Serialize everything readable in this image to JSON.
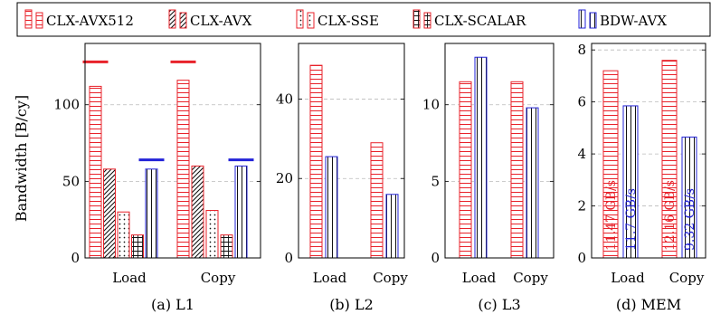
{
  "colors": {
    "red": "#e8222a",
    "blue": "#2323d8",
    "black": "#111111",
    "grid": "#bbbbbb"
  },
  "legend": {
    "entries": [
      {
        "label": "CLX-AVX512",
        "color": "#e8222a",
        "pattern": "hlines"
      },
      {
        "label": "CLX-AVX",
        "color": "#e8222a",
        "pattern": "diag"
      },
      {
        "label": "CLX-SSE",
        "color": "#e8222a",
        "pattern": "dots"
      },
      {
        "label": "CLX-SCALAR",
        "color": "#e8222a",
        "pattern": "grid"
      },
      {
        "label": "BDW-AVX",
        "color": "#2323d8",
        "pattern": "vlines"
      }
    ]
  },
  "ylabel": "Bandwidth [B/cy]",
  "chart_data": [
    {
      "type": "bar",
      "caption": "(a) L1",
      "categories": [
        "Load",
        "Copy"
      ],
      "ylim": [
        0,
        140
      ],
      "yticks": [
        0,
        50,
        100
      ],
      "grid": true,
      "series": [
        {
          "name": "CLX-AVX512",
          "values": [
            112,
            116
          ]
        },
        {
          "name": "CLX-AVX",
          "values": [
            58,
            60
          ]
        },
        {
          "name": "CLX-SSE",
          "values": [
            30,
            31
          ]
        },
        {
          "name": "CLX-SCALAR",
          "values": [
            15,
            15
          ]
        },
        {
          "name": "BDW-AVX",
          "values": [
            58,
            60
          ]
        }
      ],
      "peak_markers": [
        {
          "category": "Load",
          "series": "CLX-AVX512",
          "value": 128,
          "color": "#e8222a"
        },
        {
          "category": "Copy",
          "series": "CLX-AVX512",
          "value": 128,
          "color": "#e8222a"
        },
        {
          "category": "Load",
          "series": "BDW-AVX",
          "value": 64,
          "color": "#2323d8"
        },
        {
          "category": "Copy",
          "series": "BDW-AVX",
          "value": 64,
          "color": "#2323d8"
        }
      ]
    },
    {
      "type": "bar",
      "caption": "(b) L2",
      "categories": [
        "Load",
        "Copy"
      ],
      "ylim": [
        0,
        54
      ],
      "yticks": [
        0,
        20,
        40
      ],
      "grid": true,
      "series": [
        {
          "name": "CLX-AVX512",
          "values": [
            48.5,
            29
          ]
        },
        {
          "name": "BDW-AVX",
          "values": [
            25.5,
            16
          ]
        }
      ]
    },
    {
      "type": "bar",
      "caption": "(c) L3",
      "categories": [
        "Load",
        "Copy"
      ],
      "ylim": [
        0,
        14
      ],
      "yticks": [
        0,
        5,
        10
      ],
      "grid": true,
      "series": [
        {
          "name": "CLX-AVX512",
          "values": [
            11.5,
            11.5
          ]
        },
        {
          "name": "BDW-AVX",
          "values": [
            13.1,
            9.8
          ]
        }
      ]
    },
    {
      "type": "bar",
      "caption": "(d) MEM",
      "categories": [
        "Load",
        "Copy"
      ],
      "ylim": [
        0,
        8.25
      ],
      "yticks": [
        0,
        2,
        4,
        6,
        8
      ],
      "grid": true,
      "series": [
        {
          "name": "CLX-AVX512",
          "values": [
            7.2,
            7.6
          ],
          "bar_labels": [
            "11.47 GB/s",
            "12.16 GB/s"
          ],
          "label_color": "#e8222a"
        },
        {
          "name": "BDW-AVX",
          "values": [
            5.85,
            4.65
          ],
          "bar_labels": [
            "11.7 GB/s",
            "9.32 GB/s"
          ],
          "label_color": "#2323d8"
        }
      ]
    }
  ]
}
